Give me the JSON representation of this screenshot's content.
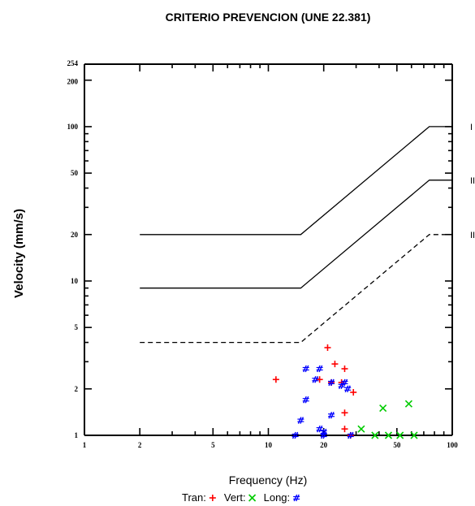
{
  "chart_data": {
    "type": "scatter",
    "title": "CRITERIO PREVENCION (UNE 22.381)",
    "xlabel": "Frequency (Hz)",
    "ylabel": "Velocity (mm/s)",
    "x_scale": "log",
    "y_scale": "log",
    "xlim": [
      1,
      100
    ],
    "ylim": [
      1,
      254
    ],
    "x_ticks": [
      "1",
      "2",
      "5",
      "10",
      "20",
      "50",
      "100"
    ],
    "y_ticks": [
      "254",
      "200",
      "100",
      "50",
      "20",
      "10",
      "5",
      "2",
      "1"
    ],
    "level_labels": [
      "I",
      "II",
      "III"
    ],
    "limit_lines": [
      {
        "name": "I",
        "style": "solid",
        "points": [
          [
            2,
            20
          ],
          [
            15,
            20
          ],
          [
            75,
            100
          ],
          [
            100,
            100
          ]
        ]
      },
      {
        "name": "II",
        "style": "solid",
        "points": [
          [
            2,
            9
          ],
          [
            15,
            9
          ],
          [
            75,
            45
          ],
          [
            100,
            45
          ]
        ]
      },
      {
        "name": "III",
        "style": "dashed",
        "points": [
          [
            2,
            4
          ],
          [
            15,
            4
          ],
          [
            75,
            20
          ],
          [
            100,
            20
          ]
        ]
      }
    ],
    "legend": [
      {
        "label": "Tran:",
        "marker": "plus",
        "color": "#ff0000"
      },
      {
        "label": "Vert:",
        "marker": "x",
        "color": "#00cc00"
      },
      {
        "label": "Long:",
        "marker": "hash",
        "color": "#0000ff"
      }
    ],
    "series": [
      {
        "name": "Tran",
        "color": "#ff0000",
        "marker": "plus",
        "points": [
          [
            11,
            2.3
          ],
          [
            19,
            2.3
          ],
          [
            21,
            3.7
          ],
          [
            23,
            2.9
          ],
          [
            26,
            2.7
          ],
          [
            26,
            1.4
          ],
          [
            26,
            1.1
          ],
          [
            29,
            1.9
          ],
          [
            28,
            1.0
          ],
          [
            22,
            2.2
          ],
          [
            25,
            2.2
          ]
        ]
      },
      {
        "name": "Vert",
        "color": "#00cc00",
        "marker": "x",
        "points": [
          [
            32,
            1.1
          ],
          [
            38,
            1.0
          ],
          [
            42,
            1.5
          ],
          [
            45,
            1.0
          ],
          [
            52,
            1.0
          ],
          [
            58,
            1.6
          ],
          [
            62,
            1.0
          ]
        ]
      },
      {
        "name": "Long",
        "color": "#0000ff",
        "marker": "hash",
        "points": [
          [
            14,
            1.0
          ],
          [
            15,
            1.25
          ],
          [
            16,
            2.7
          ],
          [
            16,
            1.7
          ],
          [
            18,
            2.3
          ],
          [
            19,
            1.1
          ],
          [
            19,
            2.7
          ],
          [
            20,
            1.0
          ],
          [
            20,
            1.05
          ],
          [
            22,
            1.35
          ],
          [
            22,
            2.2
          ],
          [
            25,
            2.1
          ],
          [
            26,
            2.2
          ],
          [
            27,
            2.0
          ],
          [
            28,
            1.0
          ]
        ]
      }
    ]
  }
}
